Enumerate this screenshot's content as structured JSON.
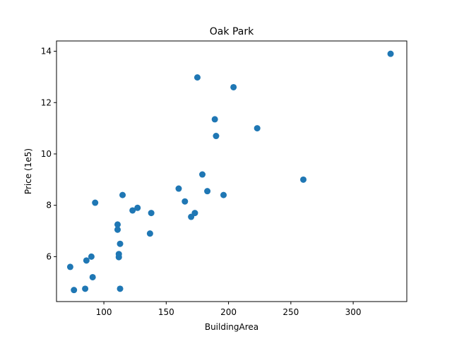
{
  "chart_data": {
    "type": "scatter",
    "title": "Oak Park",
    "xlabel": "BuildingArea",
    "ylabel": "Price (1e5)",
    "xlim": [
      62,
      343
    ],
    "ylim": [
      4.25,
      14.4
    ],
    "xticks": [
      100,
      150,
      200,
      250,
      300
    ],
    "yticks": [
      6,
      8,
      10,
      12,
      14
    ],
    "grid": false,
    "marker_color": "#1f77b4",
    "points": [
      {
        "x": 73,
        "y": 5.6
      },
      {
        "x": 76,
        "y": 4.7
      },
      {
        "x": 85,
        "y": 4.75
      },
      {
        "x": 86,
        "y": 5.85
      },
      {
        "x": 90,
        "y": 6.0
      },
      {
        "x": 91,
        "y": 5.2
      },
      {
        "x": 93,
        "y": 8.1
      },
      {
        "x": 111,
        "y": 7.25
      },
      {
        "x": 111,
        "y": 7.05
      },
      {
        "x": 112,
        "y": 6.1
      },
      {
        "x": 112,
        "y": 5.98
      },
      {
        "x": 113,
        "y": 6.5
      },
      {
        "x": 113,
        "y": 4.75
      },
      {
        "x": 115,
        "y": 8.4
      },
      {
        "x": 123,
        "y": 7.8
      },
      {
        "x": 127,
        "y": 7.9
      },
      {
        "x": 137,
        "y": 6.9
      },
      {
        "x": 138,
        "y": 7.7
      },
      {
        "x": 160,
        "y": 8.65
      },
      {
        "x": 165,
        "y": 8.15
      },
      {
        "x": 170,
        "y": 7.55
      },
      {
        "x": 173,
        "y": 7.7
      },
      {
        "x": 175,
        "y": 12.98
      },
      {
        "x": 179,
        "y": 9.2
      },
      {
        "x": 183,
        "y": 8.55
      },
      {
        "x": 189,
        "y": 11.35
      },
      {
        "x": 190,
        "y": 10.7
      },
      {
        "x": 196,
        "y": 8.4
      },
      {
        "x": 204,
        "y": 12.6
      },
      {
        "x": 223,
        "y": 11.0
      },
      {
        "x": 260,
        "y": 9.0
      },
      {
        "x": 330,
        "y": 13.9
      }
    ]
  }
}
